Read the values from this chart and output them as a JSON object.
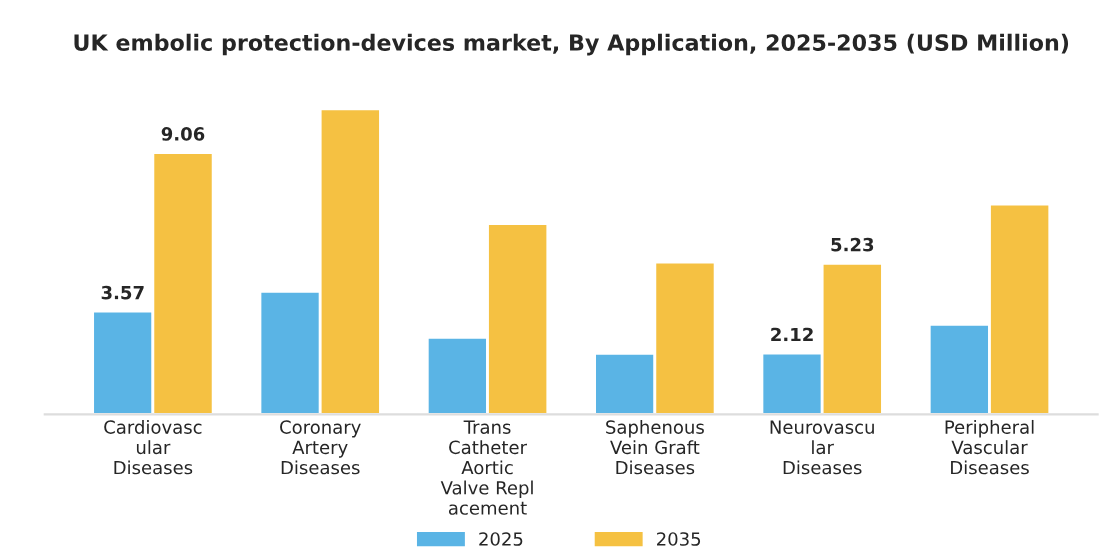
{
  "chart_data": {
    "type": "bar",
    "title": "UK embolic protection-devices market, By Application, 2025-2035 (USD Million)",
    "categories": [
      "Cardiovasc\nular\nDiseases",
      "Coronary\nArtery\nDiseases",
      "Trans\nCatheter\nAortic\nValve Repl\nacement",
      "Saphenous\nVein Graft\nDiseases",
      "Neurovascu\nlar\nDiseases",
      "Peripheral\nVascular\nDiseases"
    ],
    "series": [
      {
        "name": "2025",
        "color": "#5ab4e5",
        "values": [
          3.57,
          4.26,
          2.67,
          2.11,
          2.12,
          3.12
        ],
        "value_labels": [
          "3.57",
          null,
          null,
          null,
          "2.12",
          null
        ]
      },
      {
        "name": "2035",
        "color": "#f5c142",
        "values": [
          9.06,
          10.57,
          6.6,
          5.27,
          5.23,
          7.28
        ],
        "value_labels": [
          "9.06",
          null,
          null,
          null,
          "5.23",
          null
        ]
      }
    ],
    "legend": "bottom",
    "grid": false
  }
}
